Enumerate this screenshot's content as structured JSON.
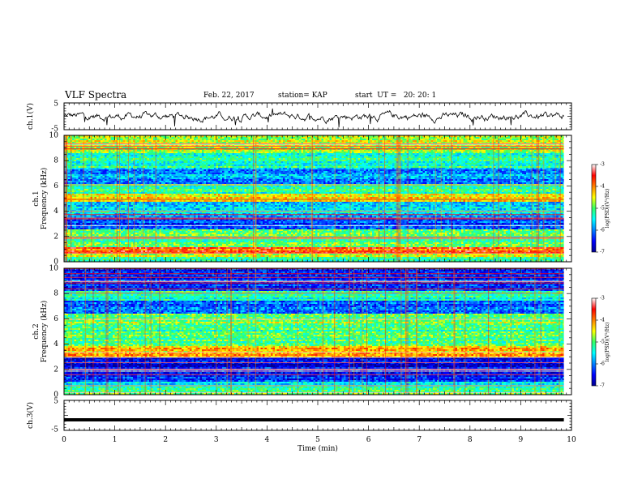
{
  "header": {
    "title": "VLF Spectra",
    "date": "Feb. 22, 2017",
    "station": "station= KAP",
    "start": "start  UT =   20: 20: 1"
  },
  "chart_data": [
    {
      "type": "line",
      "panel": "ch1-waveform",
      "ylabel": "ch.1(V)",
      "ylim": [
        -5,
        5
      ],
      "yticks": [
        "5",
        "-5"
      ],
      "xlim": [
        0,
        10
      ],
      "series": [
        {
          "shape": "noisy waveform around 0 V, amplitude about 1-3 V",
          "x_end": 9.85
        }
      ]
    },
    {
      "type": "heatmap",
      "panel": "ch1-spectrogram",
      "title": "ch.1",
      "ylabel": "Frequency (kHz)",
      "ylim": [
        0,
        10
      ],
      "yticks": [
        "0",
        "2",
        "4",
        "6",
        "8",
        "10"
      ],
      "xlim": [
        0,
        10
      ],
      "colorbar": {
        "label": "log(PSD)(V²/Hz)",
        "range": [
          -7,
          -3
        ],
        "ticks": [
          "-3",
          "-4",
          "-5",
          "-6",
          "-7"
        ]
      },
      "bands_khz": [
        {
          "from": 0,
          "to": 0.4,
          "level": -5.2
        },
        {
          "from": 0.4,
          "to": 0.7,
          "level": -4.6
        },
        {
          "from": 0.7,
          "to": 1.1,
          "level": -3.8
        },
        {
          "from": 1.1,
          "to": 2.0,
          "level": -5.0
        },
        {
          "from": 2.0,
          "to": 2.6,
          "level": -4.8
        },
        {
          "from": 2.6,
          "to": 3.6,
          "level": -6.2
        },
        {
          "from": 3.6,
          "to": 4.8,
          "level": -5.6
        },
        {
          "from": 4.8,
          "to": 5.4,
          "level": -4.5
        },
        {
          "from": 5.4,
          "to": 6.2,
          "level": -5.2
        },
        {
          "from": 6.2,
          "to": 7.4,
          "level": -5.9
        },
        {
          "from": 7.4,
          "to": 8.6,
          "level": -5.3
        },
        {
          "from": 8.6,
          "to": 10,
          "level": -4.7
        }
      ]
    },
    {
      "type": "heatmap",
      "panel": "ch2-spectrogram",
      "title": "ch.2",
      "ylabel": "Frequency (kHz)",
      "ylim": [
        0,
        10
      ],
      "yticks": [
        "0",
        "2",
        "4",
        "6",
        "8",
        "10"
      ],
      "xlim": [
        0,
        10
      ],
      "colorbar": {
        "label": "log(PSD)(V²/Hz)",
        "range": [
          -7,
          -3
        ],
        "ticks": [
          "-3",
          "-4",
          "-5",
          "-6",
          "-7"
        ]
      },
      "bands_khz": [
        {
          "from": 0,
          "to": 0.5,
          "level": -5.0
        },
        {
          "from": 0.5,
          "to": 1.0,
          "level": -5.5
        },
        {
          "from": 1.0,
          "to": 2.0,
          "level": -6.3
        },
        {
          "from": 2.0,
          "to": 3.0,
          "level": -6.6
        },
        {
          "from": 3.0,
          "to": 3.8,
          "level": -4.2
        },
        {
          "from": 3.8,
          "to": 5.2,
          "level": -5.1
        },
        {
          "from": 5.2,
          "to": 6.4,
          "level": -4.9
        },
        {
          "from": 6.4,
          "to": 7.4,
          "level": -6.1
        },
        {
          "from": 7.4,
          "to": 8.2,
          "level": -5.3
        },
        {
          "from": 8.2,
          "to": 10,
          "level": -6.3
        }
      ]
    },
    {
      "type": "line",
      "panel": "ch3-waveform",
      "ylabel": "ch.3(V)",
      "ylim": [
        -5,
        5
      ],
      "yticks": [
        "5",
        "-5"
      ],
      "xlim": [
        0,
        10
      ],
      "xlabel": "Time (min)",
      "xticks": [
        "0",
        "1",
        "2",
        "3",
        "4",
        "5",
        "6",
        "7",
        "8",
        "9",
        "10"
      ],
      "series": [
        {
          "shape": "flat thick line",
          "value": -1.5,
          "x_end": 9.85
        }
      ]
    }
  ]
}
